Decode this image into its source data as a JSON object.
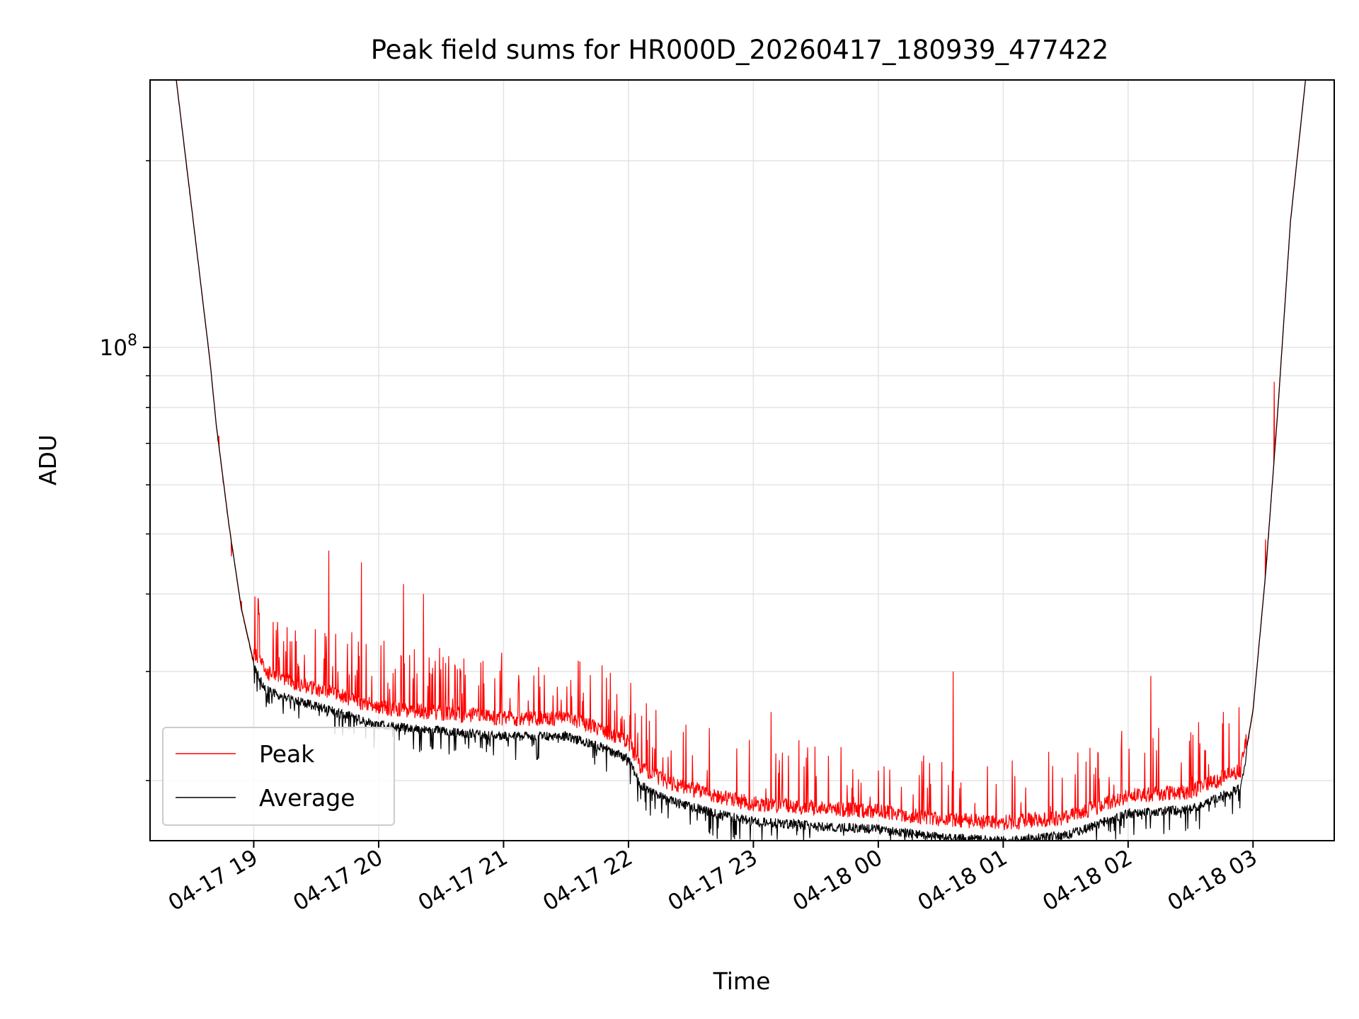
{
  "chart_data": {
    "type": "line",
    "title": "Peak field sums for HR000D_20260417_180939_477422",
    "xlabel": "Time",
    "ylabel": "ADU",
    "y_scale": "log",
    "ylim": [
      16000000,
      270000000
    ],
    "y_major_tick": {
      "value": 100000000,
      "label_base": "10",
      "label_exp": "8"
    },
    "y_minor_ticks": [
      20000000,
      30000000,
      40000000,
      50000000,
      60000000,
      70000000,
      80000000,
      90000000,
      200000000
    ],
    "xlim_hours": [
      -0.83,
      8.65
    ],
    "x_ticks": [
      {
        "hour": 0,
        "label": "04-17 19"
      },
      {
        "hour": 1,
        "label": "04-17 20"
      },
      {
        "hour": 2,
        "label": "04-17 21"
      },
      {
        "hour": 3,
        "label": "04-17 22"
      },
      {
        "hour": 4,
        "label": "04-17 23"
      },
      {
        "hour": 5,
        "label": "04-18 00"
      },
      {
        "hour": 6,
        "label": "04-18 01"
      },
      {
        "hour": 7,
        "label": "04-18 02"
      },
      {
        "hour": 8,
        "label": "04-18 03"
      }
    ],
    "grid": true,
    "legend_position": "lower-left",
    "series": [
      {
        "name": "Peak",
        "color": "#ff0000"
      },
      {
        "name": "Average",
        "color": "#000000"
      }
    ],
    "average_baseline": {
      "hours": [
        -0.62,
        -0.5,
        -0.35,
        -0.3,
        -0.2,
        -0.1,
        0.0,
        0.1,
        0.3,
        0.6,
        1.0,
        1.5,
        2.0,
        2.5,
        2.8,
        3.0,
        3.1,
        3.3,
        3.7,
        4.0,
        4.5,
        5.0,
        5.5,
        6.0,
        6.5,
        7.0,
        7.5,
        7.9,
        8.0,
        8.1,
        8.2,
        8.3,
        8.42
      ],
      "values": [
        270000000,
        170000000,
        95000000,
        75000000,
        52000000,
        38000000,
        31000000,
        28500000,
        27500000,
        26500000,
        25000000,
        24500000,
        24000000,
        24000000,
        23000000,
        22000000,
        20000000,
        19000000,
        18000000,
        17500000,
        17200000,
        17000000,
        16500000,
        16300000,
        16600000,
        18000000,
        18300000,
        19800000,
        26000000,
        43000000,
        80000000,
        160000000,
        270000000
      ]
    },
    "peak_spikes": [
      {
        "hour": -0.28,
        "value": 72000000
      },
      {
        "hour": -0.18,
        "value": 46000000
      },
      {
        "hour": -0.1,
        "value": 39000000
      },
      {
        "hour": 0.04,
        "value": 37000000
      },
      {
        "hour": 0.18,
        "value": 35000000
      },
      {
        "hour": 0.6,
        "value": 47000000
      },
      {
        "hour": 0.86,
        "value": 45000000
      },
      {
        "hour": 1.2,
        "value": 41500000
      },
      {
        "hour": 1.36,
        "value": 40000000
      },
      {
        "hour": 2.28,
        "value": 30500000
      },
      {
        "hour": 3.22,
        "value": 26000000
      },
      {
        "hour": 4.14,
        "value": 25800000
      },
      {
        "hour": 5.6,
        "value": 30000000
      },
      {
        "hour": 5.35,
        "value": 21500000
      },
      {
        "hour": 7.18,
        "value": 29500000
      },
      {
        "hour": 6.18,
        "value": 19500000
      },
      {
        "hour": 8.1,
        "value": 49000000
      },
      {
        "hour": 8.17,
        "value": 88000000
      }
    ]
  }
}
